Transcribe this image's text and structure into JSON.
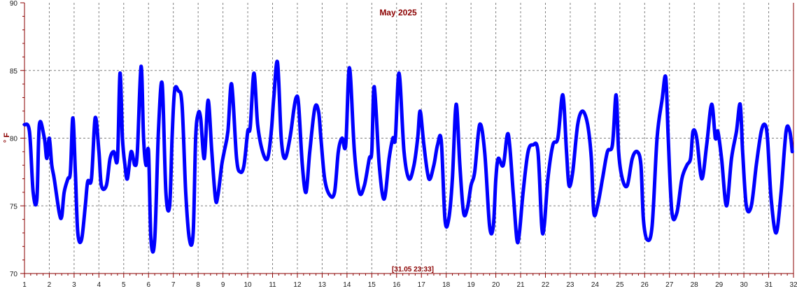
{
  "chart_data": {
    "type": "line",
    "title": "May 2025",
    "ylabel": "° F",
    "xlabel": "",
    "timestamp_label": "[31.05 23:33]",
    "xlim": [
      1,
      32
    ],
    "ylim": [
      70,
      90
    ],
    "x_ticks": [
      "1",
      "2",
      "3",
      "4",
      "5",
      "6",
      "7",
      "8",
      "9",
      "10",
      "11",
      "12",
      "13",
      "14",
      "15",
      "16",
      "17",
      "18",
      "19",
      "20",
      "21",
      "22",
      "23",
      "24",
      "25",
      "26",
      "27",
      "28",
      "29",
      "30",
      "31",
      "32"
    ],
    "y_ticks": [
      "70",
      "75",
      "80",
      "85",
      "90"
    ],
    "grid": true,
    "line_color": "#0000ff",
    "axis_color": "#8b0000",
    "grid_color": "#808080",
    "series": [
      {
        "x": [
          1.0,
          1.2,
          1.35,
          1.5,
          1.6,
          1.8,
          1.9,
          2.0,
          2.1,
          2.2,
          2.4,
          2.5,
          2.6,
          2.75,
          2.85,
          2.95,
          3.05,
          3.15,
          3.3,
          3.45,
          3.55,
          3.7,
          3.85,
          4.0,
          4.1,
          4.3,
          4.45,
          4.6,
          4.75,
          4.85,
          4.95,
          5.05,
          5.15,
          5.3,
          5.45,
          5.55,
          5.7,
          5.8,
          5.9,
          6.0,
          6.1,
          6.25,
          6.4,
          6.55,
          6.7,
          6.85,
          6.95,
          7.05,
          7.2,
          7.35,
          7.5,
          7.65,
          7.8,
          7.9,
          8.0,
          8.1,
          8.25,
          8.4,
          8.55,
          8.7,
          8.8,
          8.95,
          9.05,
          9.2,
          9.35,
          9.55,
          9.7,
          9.85,
          10.0,
          10.1,
          10.25,
          10.4,
          10.6,
          10.8,
          10.95,
          11.05,
          11.2,
          11.35,
          11.5,
          11.7,
          11.85,
          11.95,
          12.05,
          12.2,
          12.35,
          12.5,
          12.7,
          12.85,
          12.95,
          13.1,
          13.3,
          13.5,
          13.65,
          13.8,
          13.95,
          14.1,
          14.3,
          14.5,
          14.7,
          14.9,
          15.0,
          15.1,
          15.3,
          15.5,
          15.7,
          15.85,
          15.95,
          16.1,
          16.3,
          16.5,
          16.7,
          16.85,
          16.95,
          17.1,
          17.3,
          17.5,
          17.65,
          17.8,
          17.95,
          18.1,
          18.25,
          18.4,
          18.55,
          18.7,
          18.85,
          19.0,
          19.15,
          19.35,
          19.55,
          19.75,
          19.9,
          20.0,
          20.1,
          20.3,
          20.5,
          20.7,
          20.85,
          20.95,
          21.1,
          21.3,
          21.5,
          21.7,
          21.85,
          21.95,
          22.1,
          22.3,
          22.5,
          22.7,
          22.85,
          22.95,
          23.1,
          23.3,
          23.5,
          23.7,
          23.85,
          23.95,
          24.1,
          24.3,
          24.5,
          24.7,
          24.85,
          24.95,
          25.1,
          25.3,
          25.5,
          25.7,
          25.85,
          25.95,
          26.1,
          26.3,
          26.5,
          26.7,
          26.85,
          26.95,
          27.1,
          27.3,
          27.5,
          27.7,
          27.85,
          27.95,
          28.1,
          28.3,
          28.5,
          28.7,
          28.85,
          28.95,
          29.1,
          29.3,
          29.5,
          29.7,
          29.85,
          29.95,
          30.1,
          30.3,
          30.5,
          30.7,
          30.85,
          30.95,
          31.1,
          31.3,
          31.5,
          31.7,
          31.85,
          31.95
        ],
        "y": [
          81,
          80.5,
          76,
          75.5,
          81,
          80,
          78.5,
          80,
          78,
          77,
          74.5,
          74.2,
          76,
          77,
          77.5,
          81.5,
          77.5,
          73,
          72.5,
          75,
          76.8,
          77,
          81.5,
          79,
          76.5,
          76.5,
          78.5,
          79,
          78.5,
          84.8,
          80,
          78,
          77,
          79,
          78,
          79,
          85.3,
          80,
          78,
          79,
          72.5,
          72.5,
          80.5,
          84,
          76,
          75,
          80,
          83.5,
          83.5,
          82.5,
          76,
          72.5,
          73,
          80,
          81.8,
          81.5,
          78.5,
          82.8,
          79,
          75.5,
          75.8,
          78,
          79,
          80.5,
          84,
          78.5,
          77.5,
          78,
          80.5,
          80.8,
          84.8,
          81,
          79,
          78.5,
          80.5,
          83,
          85.6,
          80,
          78.5,
          80,
          82,
          83,
          82.5,
          78,
          76,
          79,
          82.2,
          82,
          80,
          77,
          75.8,
          76,
          79,
          80,
          79.5,
          85.2,
          79,
          76,
          76.5,
          78.5,
          79,
          83.8,
          78,
          75.5,
          78.5,
          80,
          80,
          84.8,
          79,
          77,
          78,
          80,
          82,
          79.5,
          77,
          78,
          79.5,
          79.8,
          74,
          74,
          77,
          82.5,
          78,
          74.5,
          74.8,
          76.5,
          77.5,
          81,
          79,
          73.5,
          73.5,
          77,
          78.5,
          78,
          80.3,
          76,
          72.5,
          73,
          76,
          79,
          79.5,
          79,
          73.5,
          73.5,
          77,
          79.5,
          80,
          83.2,
          79,
          76.5,
          77.5,
          81,
          82,
          81,
          78.5,
          74.5,
          75,
          77,
          79,
          79.5,
          83.2,
          79,
          77,
          76.5,
          78.5,
          79,
          78,
          74,
          72.5,
          73.5,
          80,
          82.8,
          84.5,
          80,
          74.5,
          74.5,
          77,
          78,
          78.5,
          80.5,
          80,
          77,
          79.5,
          82.5,
          80,
          80.5,
          78.5,
          75,
          78.5,
          80.5,
          82.5,
          79,
          75,
          75,
          78,
          80.5,
          81,
          80,
          75.5,
          73,
          76,
          80.5,
          80.5,
          79
        ]
      }
    ]
  }
}
